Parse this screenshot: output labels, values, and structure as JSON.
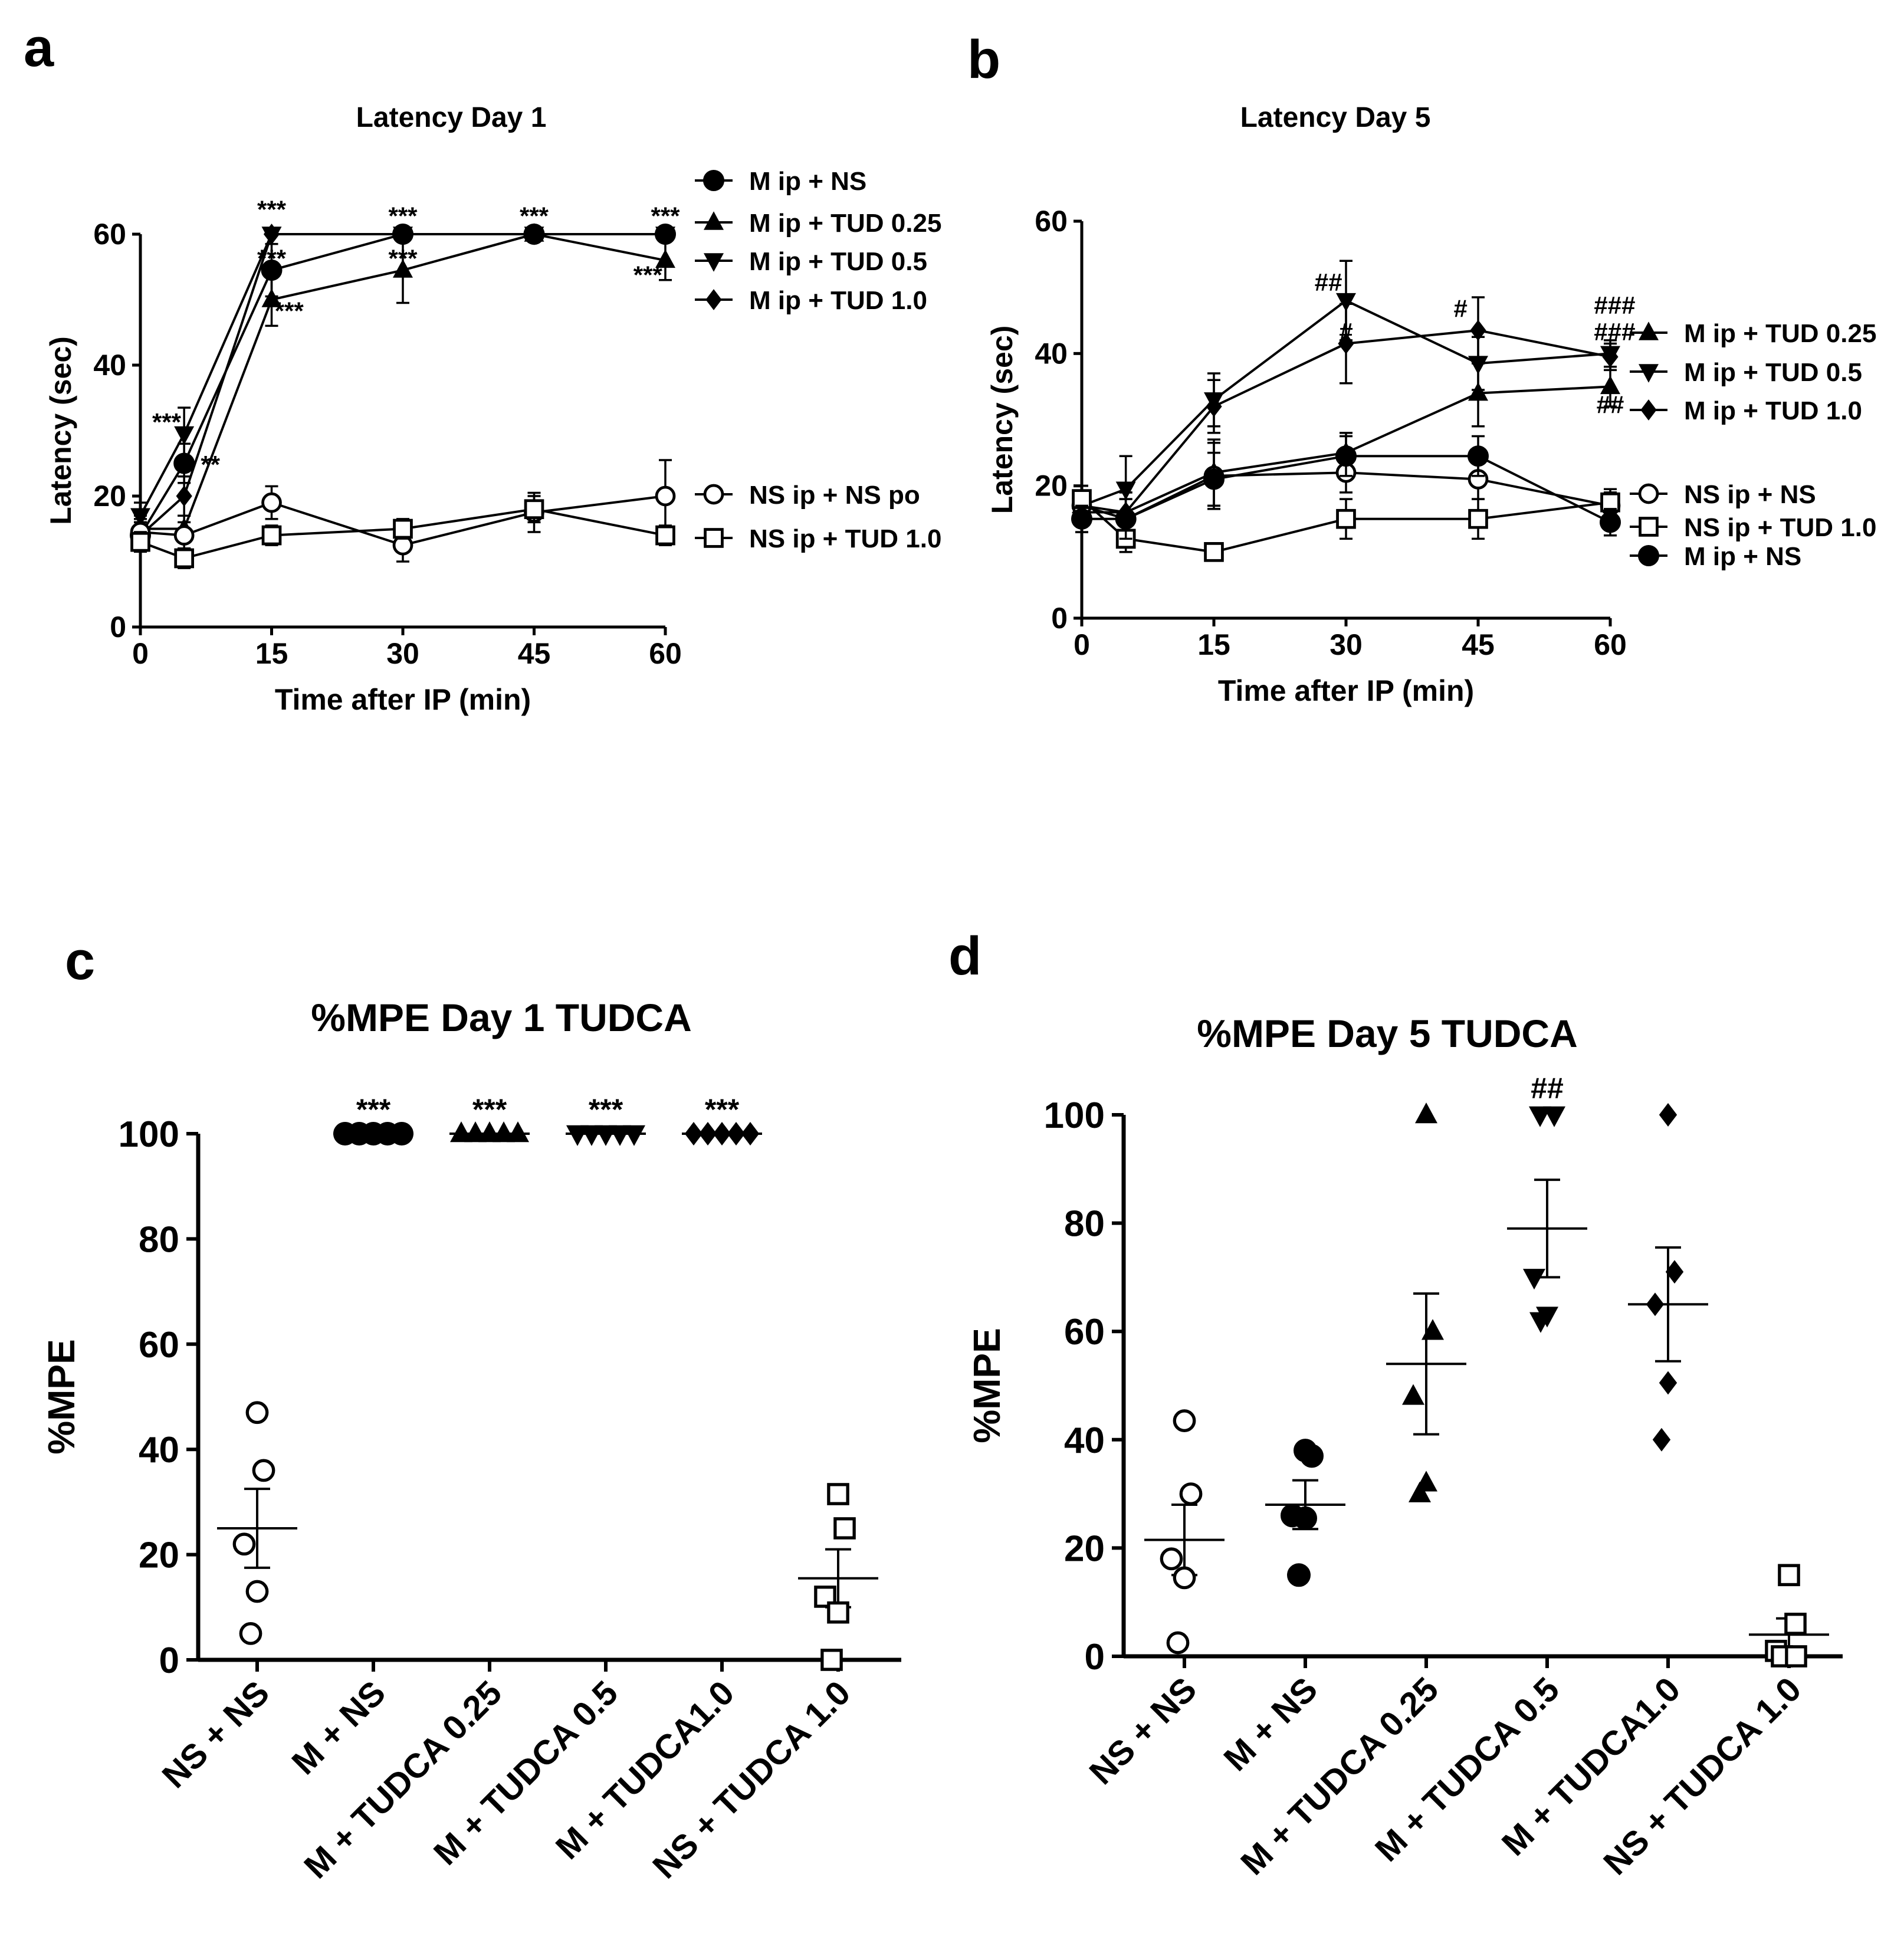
{
  "chart_data": [
    {
      "panel": "a",
      "type": "line",
      "title": "Latency Day 1",
      "xlabel": "Time after IP (min)",
      "ylabel": "Latency (sec)",
      "xlim": [
        0,
        60
      ],
      "ylim": [
        0,
        60
      ],
      "xticks": [
        "0",
        "15",
        "30",
        "45",
        "60"
      ],
      "yticks": [
        "0",
        "20",
        "40",
        "60"
      ],
      "x": [
        0,
        5,
        15,
        30,
        45,
        60
      ],
      "series": [
        {
          "name": "M ip + NS",
          "marker": "circle-filled",
          "values": [
            14,
            25,
            54.5,
            60,
            60,
            60
          ],
          "err": [
            2,
            3,
            4,
            0,
            0,
            0
          ]
        },
        {
          "name": "M ip + TUD 0.25",
          "marker": "triangle-up",
          "values": [
            15,
            15,
            50,
            54.5,
            60,
            56
          ],
          "err": [
            2,
            2,
            4,
            5,
            0,
            3
          ]
        },
        {
          "name": "M ip + TUD 0.5",
          "marker": "triangle-down",
          "values": [
            17,
            29.5,
            60,
            60,
            60,
            60
          ],
          "err": [
            2,
            4,
            0,
            0,
            0,
            0
          ]
        },
        {
          "name": "M ip + TUD 1.0",
          "marker": "diamond",
          "values": [
            14,
            20,
            60,
            60,
            60,
            60
          ],
          "err": [
            2,
            3,
            0,
            0,
            0,
            0
          ]
        },
        {
          "name": "NS ip + NS po",
          "marker": "circle-open",
          "values": [
            14.5,
            14,
            19,
            12.5,
            17.5,
            20
          ],
          "err": [
            2,
            2,
            2.5,
            2.5,
            3,
            5.5
          ]
        },
        {
          "name": "NS ip + TUD 1.0",
          "marker": "square-open",
          "values": [
            13,
            10.5,
            14,
            15,
            18,
            14
          ],
          "err": [
            1.5,
            1.5,
            1.5,
            1.5,
            2,
            1.5
          ]
        }
      ],
      "annotations": [
        {
          "text": "***",
          "x": 15,
          "y": 62.5
        },
        {
          "text": "***",
          "x": 15,
          "y": 55
        },
        {
          "text": "***",
          "x": 17,
          "y": 47
        },
        {
          "text": "***",
          "x": 30,
          "y": 61.5
        },
        {
          "text": "***",
          "x": 30,
          "y": 55
        },
        {
          "text": "***",
          "x": 45,
          "y": 61.5
        },
        {
          "text": "***",
          "x": 60,
          "y": 61.5
        },
        {
          "text": "***",
          "x": 58,
          "y": 52.5
        },
        {
          "text": "***",
          "x": 3,
          "y": 30
        },
        {
          "text": "**",
          "x": 8,
          "y": 23.5
        }
      ]
    },
    {
      "panel": "b",
      "type": "line",
      "title": "Latency Day 5",
      "xlabel": "Time after IP (min)",
      "ylabel": "Latency (sec)",
      "xlim": [
        0,
        60
      ],
      "ylim": [
        0,
        60
      ],
      "xticks": [
        "0",
        "15",
        "30",
        "45",
        "60"
      ],
      "yticks": [
        "0",
        "20",
        "40",
        "60"
      ],
      "x": [
        0,
        5,
        15,
        30,
        45,
        60
      ],
      "series": [
        {
          "name": "M ip + TUD 0.25",
          "marker": "triangle-up",
          "values": [
            17,
            16,
            22,
            25,
            34,
            35
          ],
          "err": [
            3,
            3,
            5,
            3,
            5,
            3
          ]
        },
        {
          "name": "M ip + TUD 0.5",
          "marker": "triangle-down",
          "values": [
            17,
            19.5,
            33,
            48,
            38.5,
            40
          ],
          "err": [
            3,
            5,
            4,
            6,
            4,
            2
          ]
        },
        {
          "name": "M ip + TUD 1.0",
          "marker": "diamond",
          "values": [
            16,
            16,
            32,
            41.5,
            43.5,
            39.5
          ],
          "err": [
            3,
            3,
            4,
            6,
            5,
            2
          ]
        },
        {
          "name": "NS ip + NS",
          "marker": "circle-open",
          "values": [
            17,
            15,
            21.5,
            22,
            21,
            17
          ],
          "err": [
            3,
            3,
            5,
            3,
            3,
            2
          ]
        },
        {
          "name": "NS ip + TUD 1.0",
          "marker": "square-open",
          "values": [
            18,
            12,
            10,
            15,
            15,
            17.5
          ],
          "err": [
            2,
            2,
            1,
            3,
            3,
            2
          ]
        },
        {
          "name": "M ip + NS",
          "marker": "circle-filled",
          "values": [
            15,
            15,
            21,
            24.5,
            24.5,
            14.5
          ],
          "err": [
            2,
            3,
            4,
            3,
            3,
            2
          ]
        }
      ],
      "annotations": [
        {
          "text": "##",
          "x": 28,
          "y": 49.5
        },
        {
          "text": "#",
          "x": 30,
          "y": 42
        },
        {
          "text": "#",
          "x": 43,
          "y": 45.5
        },
        {
          "text": "###",
          "x": 60.5,
          "y": 46
        },
        {
          "text": "###",
          "x": 60.5,
          "y": 42
        },
        {
          "text": "##",
          "x": 60,
          "y": 31
        }
      ]
    },
    {
      "panel": "c",
      "type": "scatter",
      "title": "%MPE Day 1 TUDCA",
      "ylabel": "%MPE",
      "ylim": [
        0,
        100
      ],
      "yticks": [
        "0",
        "20",
        "40",
        "60",
        "80",
        "100"
      ],
      "categories": [
        "NS  + NS",
        "M + NS",
        "M + TUDCA 0.25",
        "M + TUDCA 0.5",
        "M + TUDCA1.0",
        "NS + TUDCA 1.0"
      ],
      "groups": [
        {
          "marker": "circle-open",
          "points": [
            47,
            36,
            22,
            13,
            5
          ],
          "mean": 25,
          "sem": 7.5,
          "annotation": ""
        },
        {
          "marker": "circle-filled",
          "points": [
            100,
            100,
            100,
            100,
            100
          ],
          "mean": 100,
          "sem": 0,
          "annotation": "***"
        },
        {
          "marker": "triangle-up",
          "points": [
            100,
            100,
            100,
            100,
            100
          ],
          "mean": 100,
          "sem": 0,
          "annotation": "***"
        },
        {
          "marker": "triangle-down",
          "points": [
            100,
            100,
            100,
            100,
            100
          ],
          "mean": 100,
          "sem": 0,
          "annotation": "***"
        },
        {
          "marker": "diamond",
          "points": [
            100,
            100,
            100,
            100,
            100
          ],
          "mean": 100,
          "sem": 0,
          "annotation": "***"
        },
        {
          "marker": "square-open",
          "points": [
            31.5,
            25,
            12,
            9,
            0
          ],
          "mean": 15.5,
          "sem": 5.5,
          "annotation": ""
        }
      ]
    },
    {
      "panel": "d",
      "type": "scatter",
      "title": "%MPE Day 5 TUDCA",
      "ylabel": "%MPE",
      "ylim": [
        0,
        100
      ],
      "yticks": [
        "0",
        "20",
        "40",
        "60",
        "80",
        "100"
      ],
      "categories": [
        "NS + NS",
        "M + NS",
        "M + TUDCA 0.25",
        "M + TUDCA 0.5",
        "M + TUDCA1.0",
        "NS + TUDCA 1.0"
      ],
      "groups": [
        {
          "marker": "circle-open",
          "points": [
            43.5,
            30,
            18,
            14.5,
            2.5
          ],
          "mean": 21.5,
          "sem": 6.5,
          "annotation": ""
        },
        {
          "marker": "circle-filled",
          "points": [
            38,
            37,
            26,
            25.5,
            15
          ],
          "mean": 28,
          "sem": 4.5,
          "annotation": ""
        },
        {
          "marker": "triangle-up",
          "points": [
            100,
            60,
            48,
            32,
            30
          ],
          "mean": 54,
          "sem": 13,
          "annotation": ""
        },
        {
          "marker": "triangle-down",
          "points": [
            100,
            100,
            70,
            63,
            62
          ],
          "mean": 79,
          "sem": 9,
          "annotation": "##"
        },
        {
          "marker": "diamond",
          "points": [
            100,
            71,
            65,
            50.5,
            40
          ],
          "mean": 65,
          "sem": 10.5,
          "annotation": ""
        },
        {
          "marker": "square-open",
          "points": [
            15,
            6,
            1,
            0,
            0
          ],
          "mean": 4,
          "sem": 3,
          "annotation": ""
        }
      ]
    }
  ]
}
